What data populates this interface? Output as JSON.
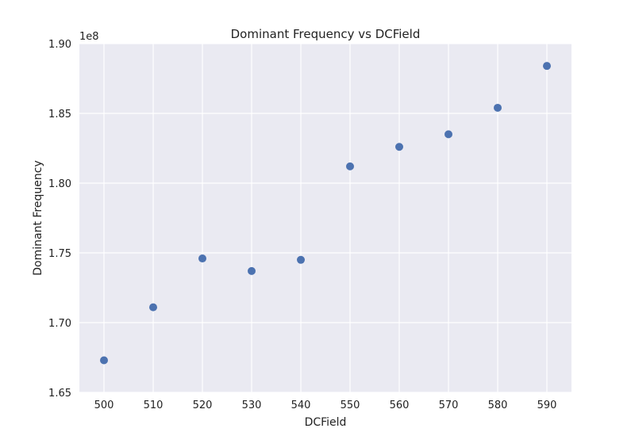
{
  "chart_data": {
    "type": "scatter",
    "title": "Dominant Frequency vs DCField",
    "xlabel": "DCField",
    "ylabel": "Dominant Frequency",
    "y_offset_label": "1e8",
    "y_scale_factor": 100000000,
    "xlim": [
      495,
      595
    ],
    "ylim": [
      1.65,
      1.9
    ],
    "x_ticks": [
      500,
      510,
      520,
      530,
      540,
      550,
      560,
      570,
      580,
      590
    ],
    "y_ticks": [
      1.65,
      1.7,
      1.75,
      1.8,
      1.85,
      1.9
    ],
    "y_tick_labels": [
      "1.65",
      "1.70",
      "1.75",
      "1.80",
      "1.85",
      "1.90"
    ],
    "grid": true,
    "background_color": "#eaeaf2",
    "marker_color": "#4c72b0",
    "x": [
      500,
      510,
      520,
      530,
      540,
      550,
      560,
      570,
      580,
      590
    ],
    "y": [
      1.673,
      1.711,
      1.746,
      1.737,
      1.745,
      1.812,
      1.826,
      1.835,
      1.854,
      1.884
    ]
  }
}
